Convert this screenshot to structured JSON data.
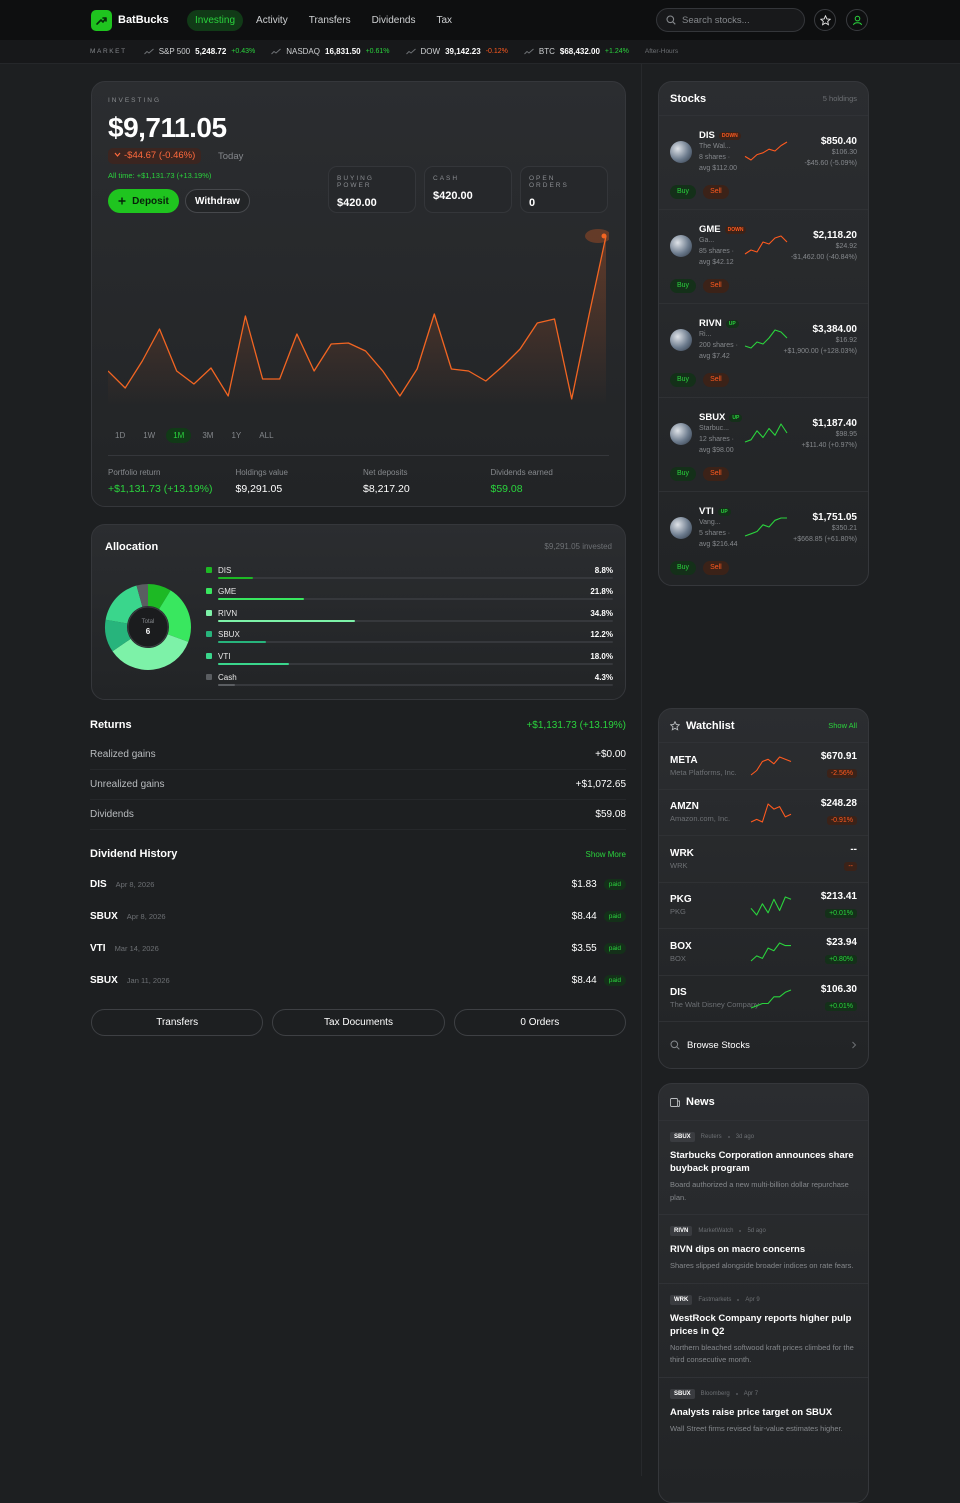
{
  "nav": {
    "brand": "BatBucks",
    "tabs": [
      "Investing",
      "Activity",
      "Transfers",
      "Dividends",
      "Tax"
    ],
    "active_tab": "Investing",
    "search": "Search stocks..."
  },
  "ticker": {
    "label": "MARKET",
    "items": [
      {
        "name": "S&P 500",
        "value": "5,248.72",
        "change": "+0.43%"
      },
      {
        "name": "NASDAQ",
        "value": "16,831.50",
        "change": "+0.61%"
      },
      {
        "name": "DOW",
        "value": "39,142.23",
        "change": "-0.12%"
      },
      {
        "name": "BTC",
        "value": "$68,432.00",
        "change": "+1.24%"
      }
    ],
    "status": "After-Hours"
  },
  "portfolio": {
    "label": "INVESTING",
    "value": "$9,711.05",
    "change": "-$44.67 (-0.46%)",
    "period": "Today",
    "all_time": "All time: +$1,131.73 (+13.19%)",
    "deposit": "Deposit",
    "withdraw": "Withdraw",
    "stats": [
      {
        "label": "BUYING POWER",
        "value": "$420.00"
      },
      {
        "label": "CASH",
        "value": "$420.00"
      },
      {
        "label": "OPEN ORDERS",
        "value": "0"
      }
    ],
    "chart": {
      "type": "line",
      "color": "#f26522",
      "values": [
        40,
        23,
        50,
        82,
        40,
        27,
        43,
        15,
        95,
        32,
        32,
        77,
        40,
        67,
        68,
        60,
        40,
        15,
        42,
        97,
        42,
        40,
        30,
        45,
        62,
        88,
        92,
        12,
        95,
        175
      ]
    },
    "ranges": [
      "1D",
      "1W",
      "1M",
      "3M",
      "1Y",
      "ALL"
    ],
    "active_range": "1M",
    "summary": [
      {
        "label": "Portfolio return",
        "value": "+$1,131.73 (+13.19%)",
        "color": "#2ad33d"
      },
      {
        "label": "Holdings value",
        "value": "$9,291.05",
        "color": "#ffffff"
      },
      {
        "label": "Net deposits",
        "value": "$8,217.20",
        "color": "#ffffff"
      },
      {
        "label": "Dividends earned",
        "value": "$59.08",
        "color": "#2ad33d"
      }
    ]
  },
  "allocation": {
    "title": "Allocation",
    "note": "$9,291.05 invested",
    "center_label": "Total",
    "center_value": "6",
    "chart": {
      "type": "donut",
      "categories": [
        "DIS",
        "GME",
        "RIVN",
        "SBUX",
        "VTI",
        "Cash"
      ],
      "values": [
        8.8,
        21.8,
        34.8,
        12.2,
        18.0,
        4.3
      ],
      "value_labels": [
        "8.8%",
        "21.8%",
        "34.8%",
        "12.2%",
        "18.0%",
        "4.3%"
      ],
      "colors": [
        "#1db924",
        "#39e75f",
        "#7df2a8",
        "#27b47c",
        "#3ad68c",
        "#5a5d61"
      ]
    }
  },
  "returns": {
    "title": "Returns",
    "total": "+$1,131.73 (+13.19%)",
    "rows": [
      {
        "label": "Realized gains",
        "value": "+$0.00"
      },
      {
        "label": "Unrealized gains",
        "value": "+$1,072.65"
      },
      {
        "label": "Dividends",
        "value": "$59.08"
      }
    ]
  },
  "dividends": {
    "title": "Dividend History",
    "action": "Show More",
    "rows": [
      {
        "symbol": "DIS",
        "date": "Apr 8, 2026",
        "amount": "$1.83",
        "status": "paid"
      },
      {
        "symbol": "SBUX",
        "date": "Apr 8, 2026",
        "amount": "$8.44",
        "status": "paid"
      },
      {
        "symbol": "VTI",
        "date": "Mar 14, 2026",
        "amount": "$3.55",
        "status": "paid"
      },
      {
        "symbol": "SBUX",
        "date": "Jan 11, 2026",
        "amount": "$8.44",
        "status": "paid"
      }
    ]
  },
  "actions": [
    "Transfers",
    "Tax Documents",
    "0 Orders"
  ],
  "stocks": {
    "title": "Stocks",
    "count": "5 holdings",
    "buy": "Buy",
    "sell": "Sell",
    "items": [
      {
        "symbol": "DIS",
        "trend": "DOWN",
        "name": "The Wal...",
        "details": "8 shares · avg $112.00",
        "value": "$850.40",
        "price": "$106.30",
        "change": "-$45.60 (-5.09%)",
        "spark": [
          4,
          2,
          5,
          6,
          8,
          7,
          10,
          12
        ]
      },
      {
        "symbol": "GME",
        "trend": "DOWN",
        "name": "Ga...",
        "details": "85 shares · avg $42.12",
        "value": "$2,118.20",
        "price": "$24.92",
        "change": "-$1,462.00 (-40.84%)",
        "spark": [
          2,
          4,
          3,
          8,
          7,
          10,
          11,
          8
        ]
      },
      {
        "symbol": "RIVN",
        "trend": "UP",
        "name": "Ri...",
        "details": "200 shares · avg $7.42",
        "value": "$3,384.00",
        "price": "$16.92",
        "change": "+$1,900.00 (+128.03%)",
        "spark": [
          2,
          1,
          4,
          3,
          6,
          10,
          9,
          6
        ]
      },
      {
        "symbol": "SBUX",
        "trend": "UP",
        "name": "Starbuc...",
        "details": "12 shares · avg $98.00",
        "value": "$1,187.40",
        "price": "$98.95",
        "change": "+$11.40 (+0.97%)",
        "spark": [
          2,
          3,
          7,
          4,
          8,
          5,
          10,
          6
        ]
      },
      {
        "symbol": "VTI",
        "trend": "UP",
        "name": "Vang...",
        "details": "5 shares · avg $216.44",
        "value": "$1,751.05",
        "price": "$350.21",
        "change": "+$668.85 (+61.80%)",
        "spark": [
          1,
          2,
          3,
          6,
          5,
          8,
          9,
          9
        ]
      }
    ]
  },
  "watchlist": {
    "title": "Watchlist",
    "action": "Show All",
    "browse": "Browse Stocks",
    "items": [
      {
        "symbol": "META",
        "name": "Meta Platforms, Inc.",
        "price": "$670.91",
        "change": "-2.56%",
        "spark": [
          1,
          3,
          7,
          8,
          6,
          9,
          8,
          7
        ]
      },
      {
        "symbol": "AMZN",
        "name": "Amazon.com, Inc.",
        "price": "$248.28",
        "change": "-0.91%",
        "spark": [
          2,
          3,
          2,
          9,
          7,
          8,
          4,
          5
        ]
      },
      {
        "symbol": "WRK",
        "name": "WRK",
        "price": "--",
        "change": "--"
      },
      {
        "symbol": "PKG",
        "name": "PKG",
        "price": "$213.41",
        "change": "+0.01%",
        "spark": [
          4,
          1,
          6,
          2,
          8,
          3,
          9,
          8
        ]
      },
      {
        "symbol": "BOX",
        "name": "BOX",
        "price": "$23.94",
        "change": "+0.80%",
        "spark": [
          2,
          4,
          3,
          7,
          6,
          9,
          8,
          8
        ]
      },
      {
        "symbol": "DIS",
        "name": "The Walt Disney Company",
        "price": "$106.30",
        "change": "+0.01%",
        "spark": [
          1,
          2,
          3,
          3,
          6,
          6,
          8,
          9
        ]
      }
    ]
  },
  "news": {
    "title": "News",
    "items": [
      {
        "tag": "SBUX",
        "source": "Reuters",
        "time": "3d ago",
        "headline": "Starbucks Corporation announces share buyback program",
        "summary": "Board authorized a new multi-billion dollar repurchase plan."
      },
      {
        "tag": "RIVN",
        "source": "MarketWatch",
        "time": "5d ago",
        "headline": "RIVN dips on macro concerns",
        "summary": "Shares slipped alongside broader indices on rate fears."
      },
      {
        "tag": "WRK",
        "source": "Fastmarkets",
        "time": "Apr 9",
        "headline": "WestRock Company reports higher pulp prices in Q2",
        "summary": "Northern bleached softwood kraft prices climbed for the third consecutive month."
      },
      {
        "tag": "SBUX",
        "source": "Bloomberg",
        "time": "Apr 7",
        "headline": "Analysts raise price target on SBUX",
        "summary": "Wall Street firms revised fair-value estimates higher."
      }
    ]
  }
}
